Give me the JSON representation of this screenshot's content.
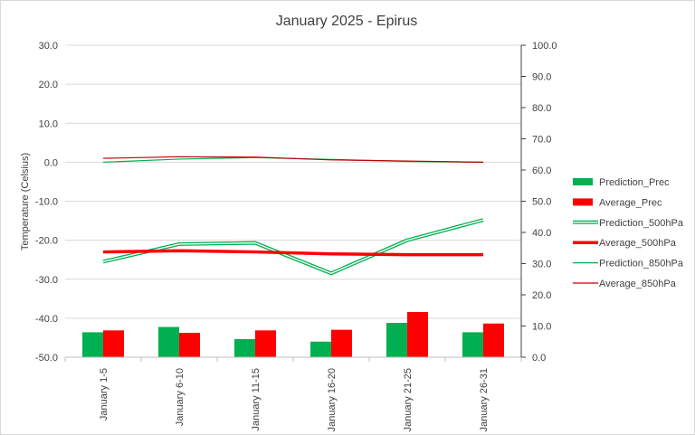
{
  "chart_data": {
    "type": "bar+line",
    "title": "January 2025 - Epirus",
    "ylabel": "Temperature (Celsius)",
    "y2label": "",
    "ylim": [
      -50,
      30
    ],
    "y2lim": [
      0,
      100
    ],
    "yticks": [
      "30.0",
      "20.0",
      "10.0",
      "0.0",
      "-10.0",
      "-20.0",
      "-30.0",
      "-40.0",
      "-50.0"
    ],
    "y2ticks": [
      "100.0",
      "90.0",
      "80.0",
      "70.0",
      "60.0",
      "50.0",
      "40.0",
      "30.0",
      "20.0",
      "10.0",
      "0.0"
    ],
    "grid": true,
    "legend_position": "right",
    "categories": [
      "January 1-5",
      "January 6-10",
      "January 11-15",
      "January 16-20",
      "January 21-25",
      "January 26-31"
    ],
    "series": [
      {
        "name": "Prediction_Prec",
        "kind": "bar",
        "axis": "right",
        "color": "#00b050",
        "values": [
          8,
          9.7,
          5.8,
          5,
          11,
          8
        ]
      },
      {
        "name": "Average_Prec",
        "kind": "bar",
        "axis": "right",
        "color": "#ff0000",
        "values": [
          8.6,
          7.8,
          8.6,
          8.8,
          14.5,
          10.8
        ]
      },
      {
        "name": "Prediction_500hPa",
        "kind": "line",
        "style": "double",
        "axis": "left",
        "color": "#00b050",
        "values": [
          -25.5,
          -21,
          -20.7,
          -28.5,
          -20,
          -14.8
        ]
      },
      {
        "name": "Average_500hPa",
        "kind": "line",
        "style": "thick",
        "axis": "left",
        "color": "#ff0000",
        "values": [
          -23,
          -22.7,
          -23,
          -23.5,
          -23.7,
          -23.7
        ]
      },
      {
        "name": "Prediction_850hPa",
        "kind": "line",
        "style": "thin",
        "axis": "left",
        "color": "#00b050",
        "values": [
          0,
          0.8,
          1.2,
          0.7,
          0.2,
          0
        ]
      },
      {
        "name": "Average_850hPa",
        "kind": "line",
        "style": "thin",
        "axis": "left",
        "color": "#c00000",
        "values": [
          1,
          1.4,
          1.3,
          0.6,
          0.3,
          0
        ]
      }
    ]
  }
}
